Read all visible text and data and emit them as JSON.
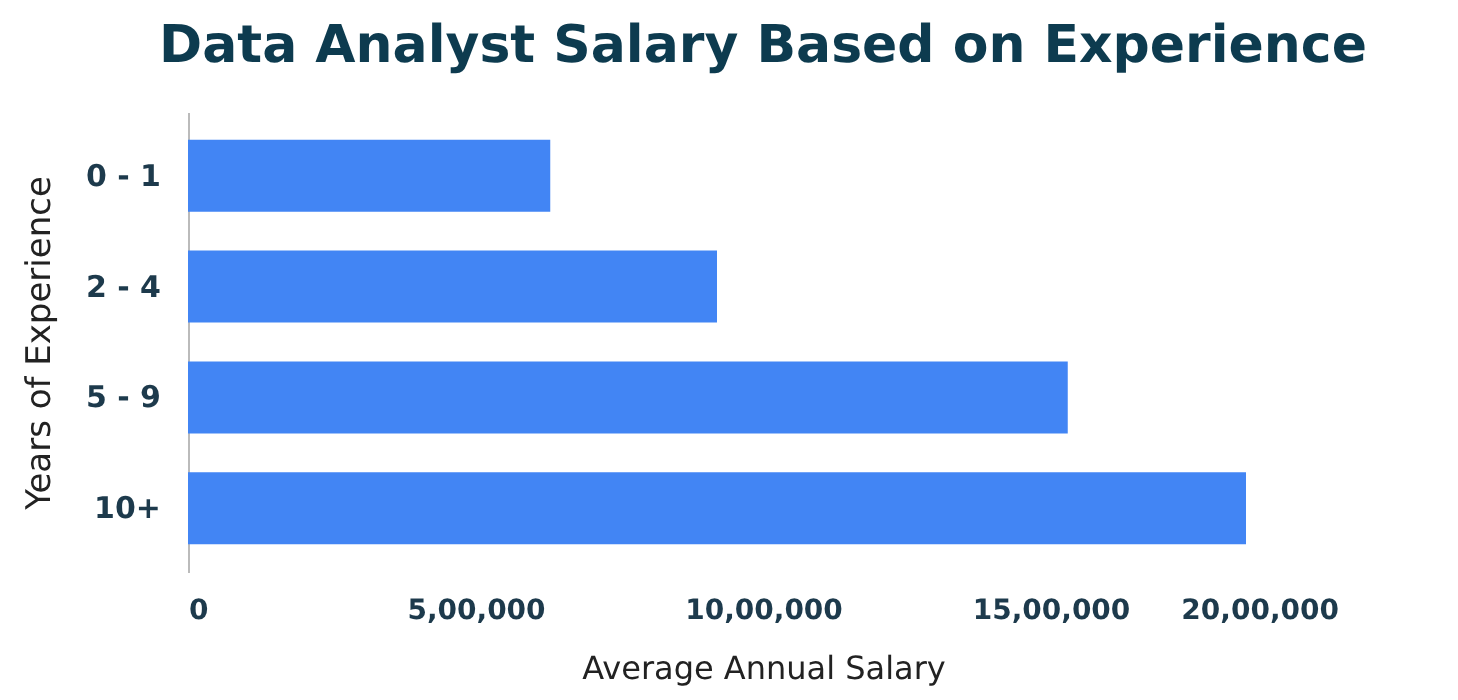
{
  "chart_data": {
    "type": "bar",
    "orientation": "horizontal",
    "title": "Data Analyst Salary Based on Experience",
    "xlabel": "Average Annual Salary",
    "ylabel": "Years of Experience",
    "categories": [
      "0 - 1",
      "2 - 4",
      "5 - 9",
      "10+"
    ],
    "values": [
      630000,
      920000,
      1530000,
      1840000
    ],
    "color": "#4285f4",
    "xlim": [
      0,
      2000000
    ],
    "xticks": [
      0,
      {
        "value": 500000,
        "label": "5,00,000"
      },
      {
        "value": 1000000,
        "label": "10,00,000"
      },
      {
        "value": 1500000,
        "label": "15,00,000"
      },
      {
        "value": 2000000,
        "label": "20,00,000"
      }
    ],
    "grid": false
  }
}
